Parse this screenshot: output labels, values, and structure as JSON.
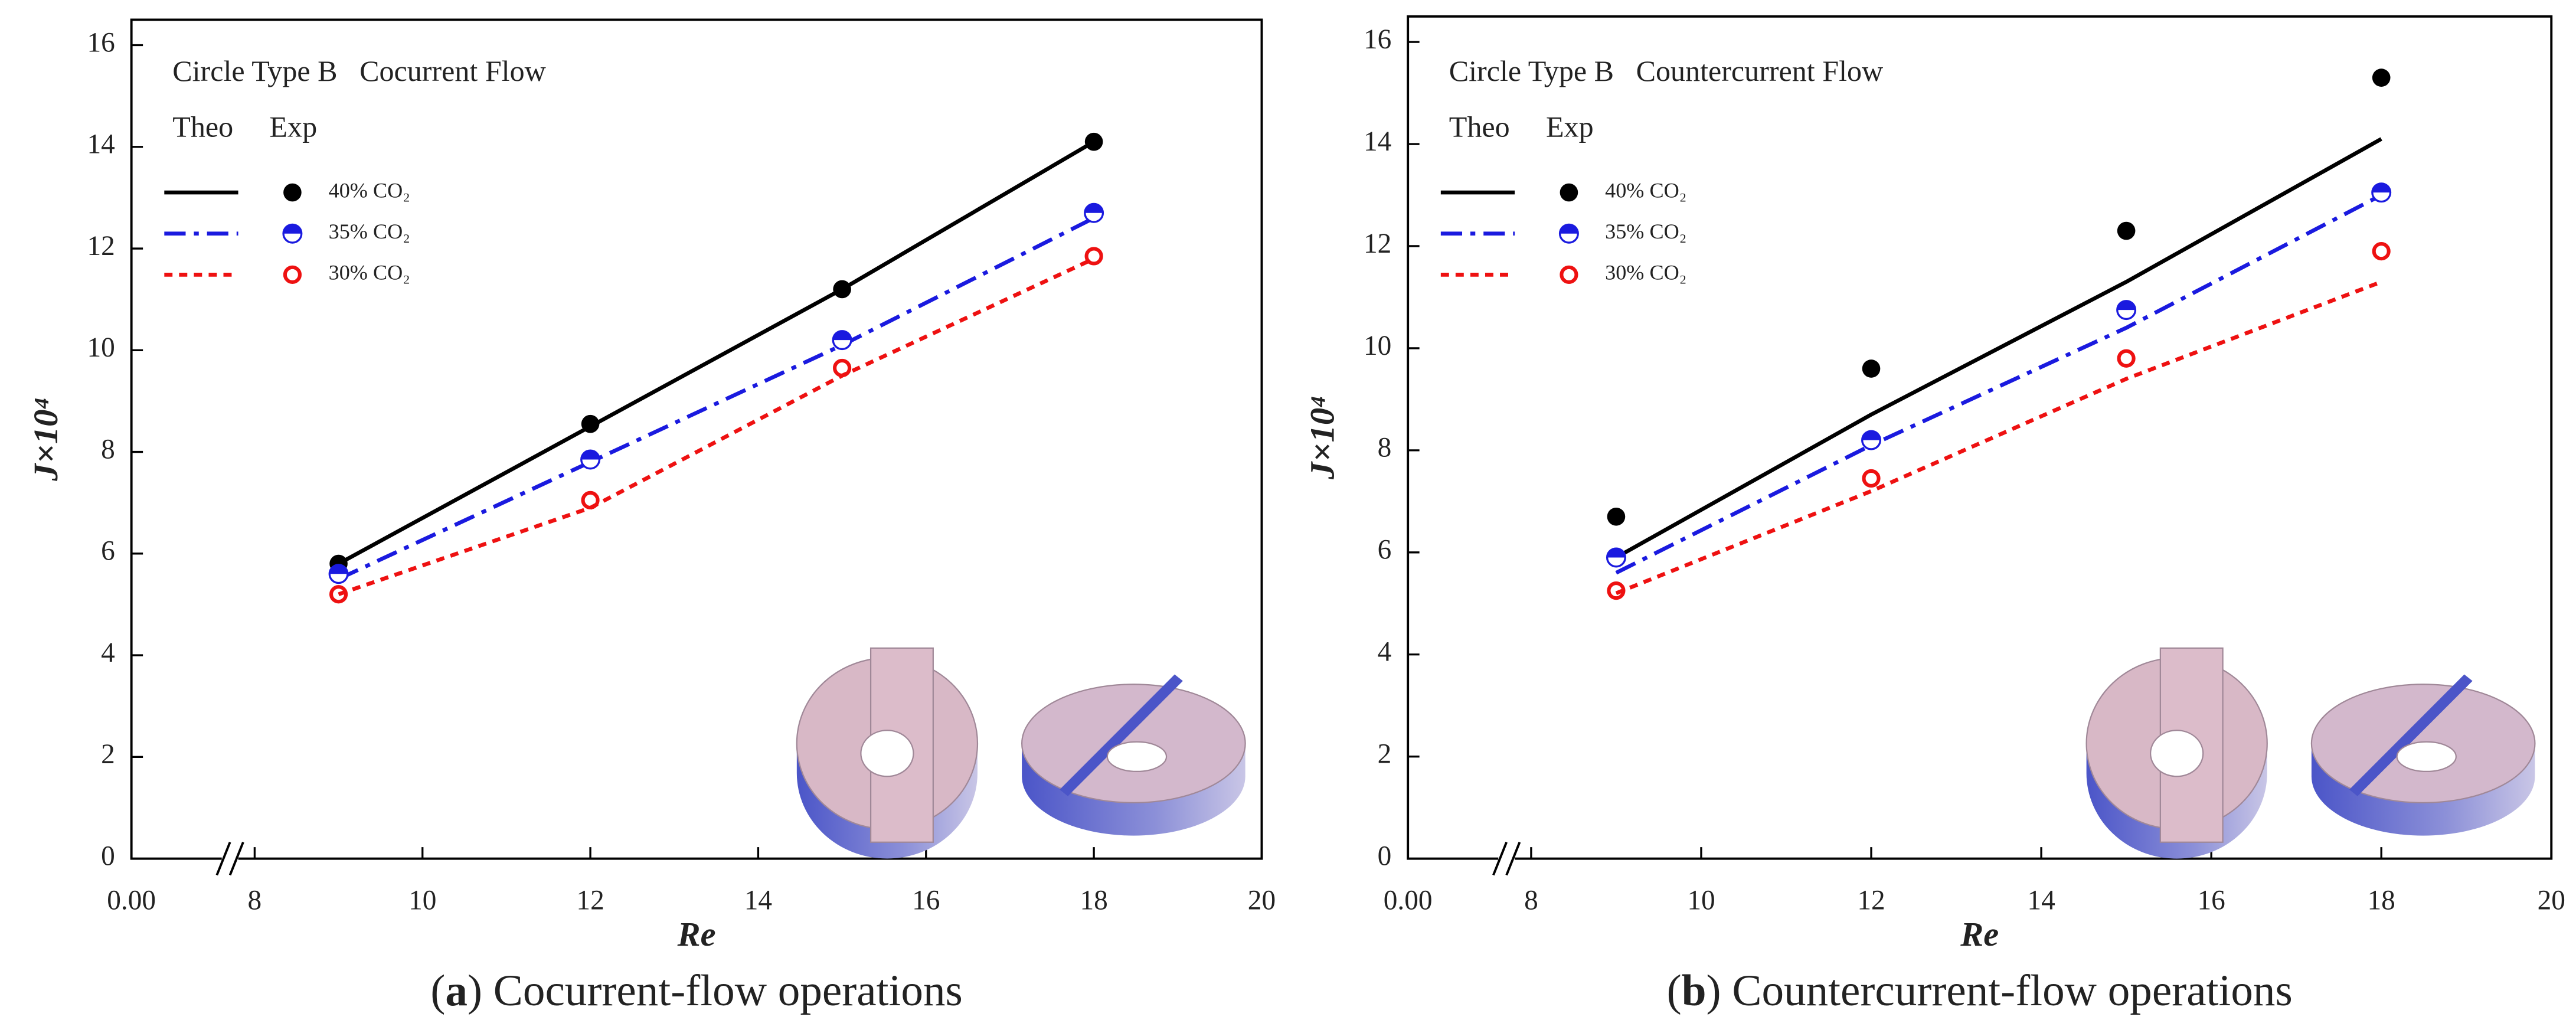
{
  "chart_data": [
    {
      "type": "line",
      "title": "Circle Type B   Cocurrent Flow",
      "legend_header": [
        "Theo",
        "Exp"
      ],
      "x_label": "Re",
      "y_label": "J×10⁴",
      "caption_label": "a",
      "caption": "Cocurrent-flow operations",
      "x": [
        9,
        12,
        15,
        18
      ],
      "series": [
        {
          "name": "40% CO₂",
          "color": "#000000",
          "style": "solid",
          "marker": "filled",
          "theo": [
            5.8,
            8.5,
            11.2,
            14.1
          ],
          "exp": [
            5.8,
            8.55,
            11.2,
            14.1
          ]
        },
        {
          "name": "35% CO₂",
          "color": "#1a1adf",
          "style": "dashdot",
          "marker": "half",
          "theo": [
            5.5,
            7.8,
            10.1,
            12.6
          ],
          "exp": [
            5.6,
            7.85,
            10.2,
            12.7
          ]
        },
        {
          "name": "30% CO₂",
          "color": "#ee1111",
          "style": "dotted",
          "marker": "open",
          "theo": [
            5.2,
            6.9,
            9.5,
            11.8
          ],
          "exp": [
            5.2,
            7.05,
            9.65,
            11.85
          ]
        }
      ],
      "xlim": [
        0,
        20
      ],
      "xticks": [
        {
          "value": 0,
          "label": "0.00"
        },
        8,
        10,
        12,
        14,
        16,
        18,
        20
      ],
      "axis_break": true,
      "ylim": [
        0,
        16.5
      ],
      "yticks": [
        0,
        2,
        4,
        6,
        8,
        10,
        12,
        14,
        16
      ]
    },
    {
      "type": "line",
      "title": "Circle Type B   Countercurrent Flow",
      "legend_header": [
        "Theo",
        "Exp"
      ],
      "x_label": "Re",
      "y_label": "J×10⁴",
      "caption_label": "b",
      "caption": "Countercurrent-flow operations",
      "x": [
        9,
        12,
        15,
        18
      ],
      "series": [
        {
          "name": "40% CO₂",
          "color": "#000000",
          "style": "solid",
          "marker": "filled",
          "theo": [
            5.9,
            8.7,
            11.3,
            14.1
          ],
          "exp": [
            6.7,
            9.6,
            12.3,
            15.3
          ]
        },
        {
          "name": "35% CO₂",
          "color": "#1a1adf",
          "style": "dashdot",
          "marker": "half",
          "theo": [
            5.6,
            8.1,
            10.4,
            13.0
          ],
          "exp": [
            5.9,
            8.2,
            10.75,
            13.05
          ]
        },
        {
          "name": "30% CO₂",
          "color": "#ee1111",
          "style": "dotted",
          "marker": "open",
          "theo": [
            5.2,
            7.2,
            9.4,
            11.3
          ],
          "exp": [
            5.25,
            7.45,
            9.8,
            11.9
          ]
        }
      ],
      "xlim": [
        0,
        20
      ],
      "xticks": [
        {
          "value": 0,
          "label": "0.00"
        },
        8,
        10,
        12,
        14,
        16,
        18,
        20
      ],
      "axis_break": true,
      "ylim": [
        0,
        16.5
      ],
      "yticks": [
        0,
        2,
        4,
        6,
        8,
        10,
        12,
        14,
        16
      ]
    }
  ]
}
